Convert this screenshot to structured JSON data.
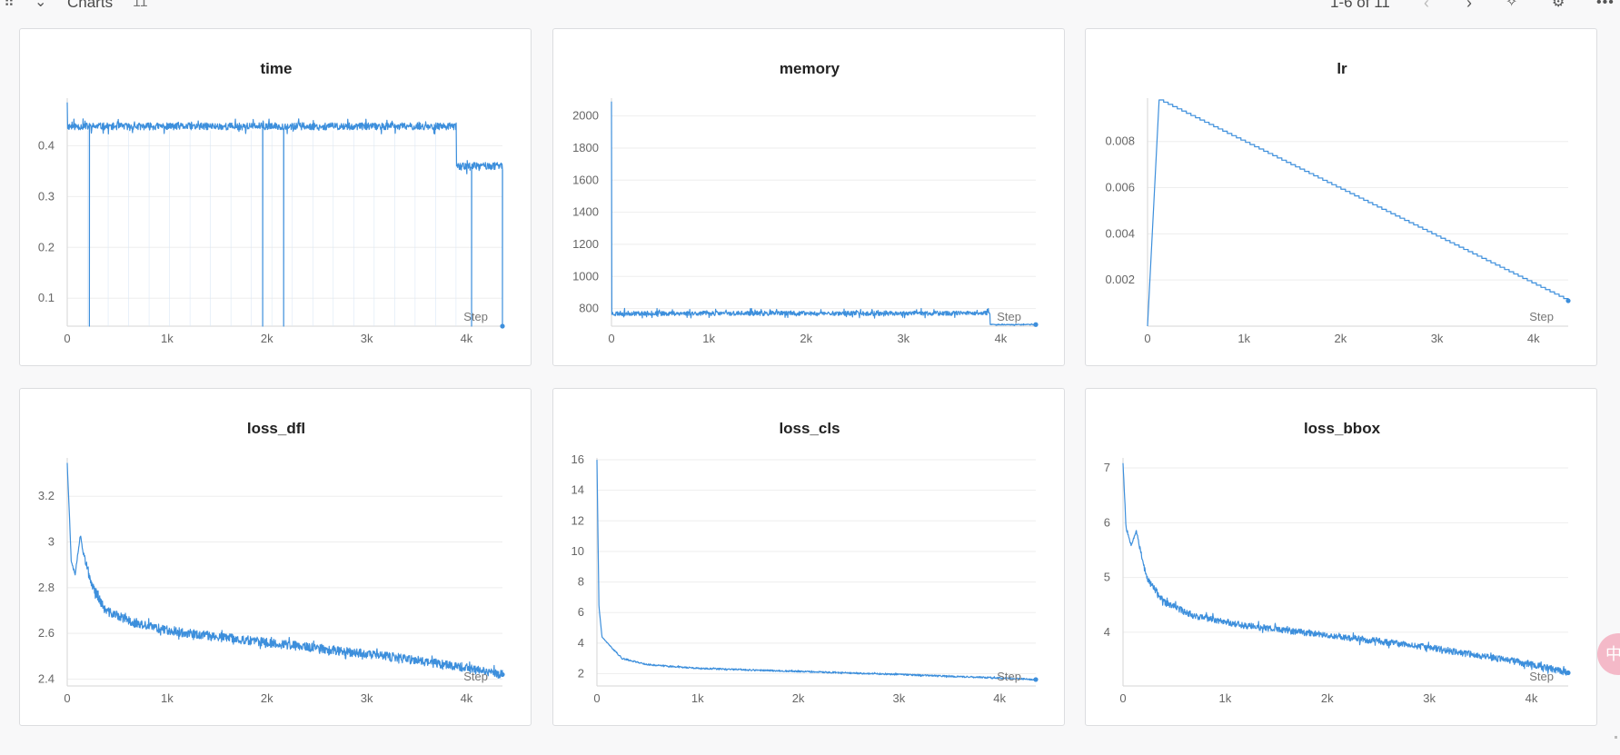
{
  "header": {
    "section_title": "Charts",
    "section_count": "11",
    "pagination": "1-6 of 11",
    "drag_glyph": "⠿",
    "chevron_glyph": "⌄",
    "prev_glyph": "‹",
    "next_glyph": "›",
    "pin_glyph": "✧",
    "gear_glyph": "⚙",
    "more_glyph": "•••",
    "float_glyph": "中"
  },
  "colors": {
    "series": "#3d8fdc",
    "grid": "#eeeeee",
    "axis": "#d6d6d6"
  },
  "x_axis_label": "Step",
  "chart_data": [
    {
      "type": "line",
      "title": "time",
      "xlabel": "Step",
      "xlim": [
        0,
        4360
      ],
      "ylim": [
        0.045,
        0.49
      ],
      "xticks": [
        0,
        1000,
        2000,
        3000,
        4000
      ],
      "xtick_labels": [
        "0",
        "1k",
        "2k",
        "3k",
        "4k"
      ],
      "yticks": [
        0.1,
        0.2,
        0.3,
        0.4
      ],
      "ytick_labels": [
        "0.1",
        "0.2",
        "0.3",
        "0.4"
      ],
      "gen": {
        "kind": "plateau",
        "seed": 11,
        "segments": [
          [
            0,
            3900,
            0.438,
            0.007
          ],
          [
            3905,
            4360,
            0.36,
            0.007
          ]
        ],
        "spikes_down": [
          [
            220,
            0.045
          ],
          [
            1960,
            0.045
          ],
          [
            2170,
            0.045
          ],
          [
            4050,
            0.045
          ],
          [
            4360,
            0.045
          ]
        ],
        "start": 0.485
      },
      "last_value": 0.045
    },
    {
      "type": "line",
      "title": "memory",
      "xlabel": "Step",
      "xlim": [
        0,
        4360
      ],
      "ylim": [
        690,
        2100
      ],
      "xticks": [
        0,
        1000,
        2000,
        3000,
        4000
      ],
      "xtick_labels": [
        "0",
        "1k",
        "2k",
        "3k",
        "4k"
      ],
      "yticks": [
        800,
        1000,
        1200,
        1400,
        1600,
        1800,
        2000
      ],
      "ytick_labels": [
        "800",
        "1000",
        "1200",
        "1400",
        "1600",
        "1800",
        "2000"
      ],
      "gen": {
        "kind": "plateau",
        "seed": 23,
        "segments": [
          [
            0,
            3890,
            770,
            14
          ],
          [
            3900,
            4360,
            700,
            3
          ]
        ],
        "spikes_down": [],
        "start": 2090
      },
      "last_value": 700
    },
    {
      "type": "line",
      "title": "lr",
      "xlabel": "Step",
      "xlim": [
        0,
        4360
      ],
      "ylim": [
        0,
        0.0098
      ],
      "xticks": [
        0,
        1000,
        2000,
        3000,
        4000
      ],
      "xtick_labels": [
        "0",
        "1k",
        "2k",
        "3k",
        "4k"
      ],
      "yticks": [
        0.002,
        0.004,
        0.006,
        0.008
      ],
      "ytick_labels": [
        "0.002",
        "0.004",
        "0.006",
        "0.008"
      ],
      "gen": {
        "kind": "lr",
        "warmup_end": 120,
        "peak": 0.0098,
        "end": 0.0011
      },
      "last_value": 0.0011
    },
    {
      "type": "line",
      "title": "loss_dfl",
      "xlabel": "Step",
      "xlim": [
        0,
        4360
      ],
      "ylim": [
        2.37,
        3.36
      ],
      "xticks": [
        0,
        1000,
        2000,
        3000,
        4000
      ],
      "xtick_labels": [
        "0",
        "1k",
        "2k",
        "3k",
        "4k"
      ],
      "yticks": [
        2.4,
        2.6,
        2.8,
        3.0,
        3.2
      ],
      "ytick_labels": [
        "2.4",
        "2.6",
        "2.8",
        "3",
        "3.2"
      ],
      "gen": {
        "kind": "decay",
        "seed": 37,
        "knots": [
          [
            0,
            3.35
          ],
          [
            40,
            2.92
          ],
          [
            80,
            2.86
          ],
          [
            130,
            3.03
          ],
          [
            220,
            2.84
          ],
          [
            380,
            2.7
          ],
          [
            700,
            2.64
          ],
          [
            1200,
            2.6
          ],
          [
            2000,
            2.56
          ],
          [
            3000,
            2.51
          ],
          [
            3800,
            2.465
          ],
          [
            4360,
            2.42
          ]
        ],
        "noise": 0.02
      },
      "last_value": 2.42
    },
    {
      "type": "line",
      "title": "loss_cls",
      "xlabel": "Step",
      "xlim": [
        0,
        4360
      ],
      "ylim": [
        1.2,
        16
      ],
      "xticks": [
        0,
        1000,
        2000,
        3000,
        4000
      ],
      "xtick_labels": [
        "0",
        "1k",
        "2k",
        "3k",
        "4k"
      ],
      "yticks": [
        2,
        4,
        6,
        8,
        10,
        12,
        14,
        16
      ],
      "ytick_labels": [
        "2",
        "4",
        "6",
        "8",
        "10",
        "12",
        "14",
        "16"
      ],
      "gen": {
        "kind": "decay",
        "seed": 41,
        "knots": [
          [
            0,
            16
          ],
          [
            20,
            6.4
          ],
          [
            50,
            4.4
          ],
          [
            120,
            3.9
          ],
          [
            250,
            3.0
          ],
          [
            500,
            2.6
          ],
          [
            1000,
            2.35
          ],
          [
            2000,
            2.15
          ],
          [
            3000,
            1.95
          ],
          [
            4000,
            1.72
          ],
          [
            4360,
            1.62
          ]
        ],
        "noise": 0.05
      },
      "last_value": 1.62
    },
    {
      "type": "line",
      "title": "loss_bbox",
      "xlabel": "Step",
      "xlim": [
        0,
        4360
      ],
      "ylim": [
        3.02,
        7.15
      ],
      "xticks": [
        0,
        1000,
        2000,
        3000,
        4000
      ],
      "xtick_labels": [
        "0",
        "1k",
        "2k",
        "3k",
        "4k"
      ],
      "yticks": [
        4,
        5,
        6,
        7
      ],
      "ytick_labels": [
        "4",
        "5",
        "6",
        "7"
      ],
      "gen": {
        "kind": "decay",
        "seed": 53,
        "knots": [
          [
            0,
            7.1
          ],
          [
            30,
            5.9
          ],
          [
            80,
            5.6
          ],
          [
            130,
            5.85
          ],
          [
            230,
            5.0
          ],
          [
            400,
            4.55
          ],
          [
            700,
            4.3
          ],
          [
            1200,
            4.12
          ],
          [
            2000,
            3.95
          ],
          [
            3000,
            3.72
          ],
          [
            4000,
            3.42
          ],
          [
            4360,
            3.26
          ]
        ],
        "noise": 0.06
      },
      "last_value": 3.26
    }
  ]
}
